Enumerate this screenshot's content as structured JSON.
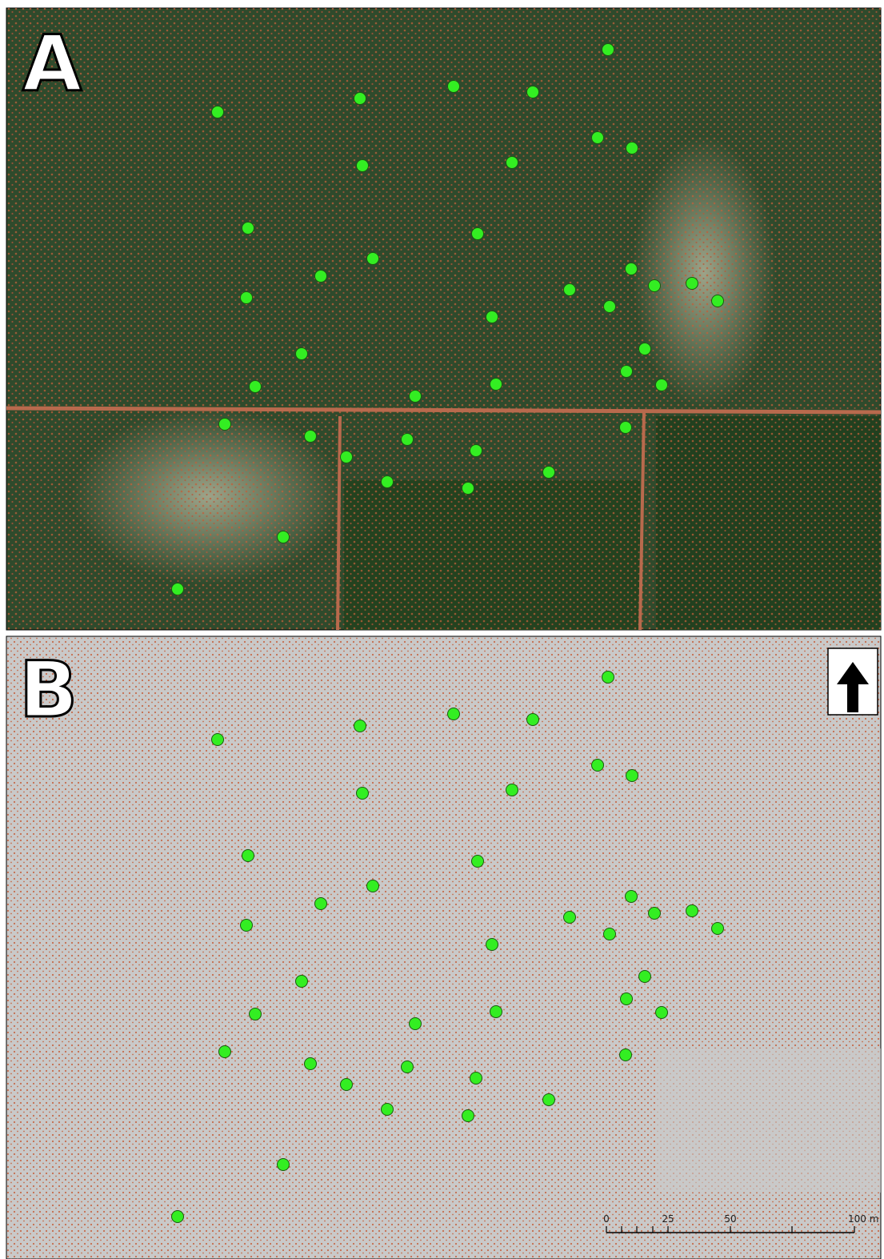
{
  "panels": [
    {
      "label": "A"
    },
    {
      "label": "B"
    }
  ],
  "scale_bar": {
    "labels": [
      "0",
      "25",
      "50",
      "100 m"
    ]
  }
}
